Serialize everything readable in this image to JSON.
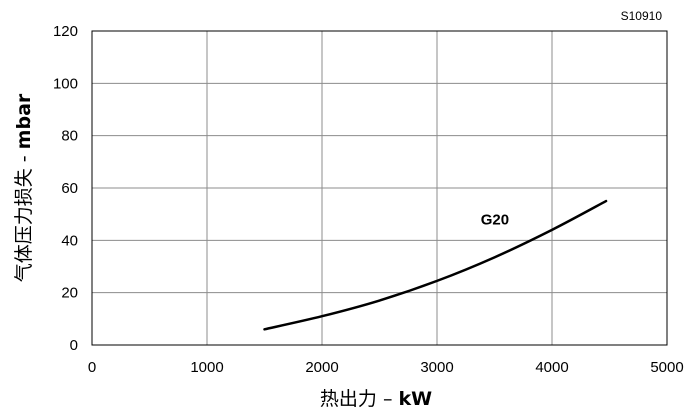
{
  "figure_code": "S10910",
  "chart_data": {
    "type": "line",
    "title": "",
    "xlabel": {
      "text": "热出力 – ",
      "unit": "kW"
    },
    "ylabel": {
      "text": "气体压力损失 - ",
      "unit": "mbar"
    },
    "xlim": [
      0,
      5000
    ],
    "ylim": [
      0,
      120
    ],
    "xticks": [
      "0",
      "1000",
      "2000",
      "3000",
      "4000",
      "5000"
    ],
    "yticks": [
      "0",
      "20",
      "40",
      "60",
      "80",
      "100",
      "120"
    ],
    "grid": true,
    "legend": "none",
    "series": [
      {
        "name": "G20",
        "color": "#000000",
        "x": [
          1500,
          2000,
          2500,
          3000,
          3500,
          4000,
          4470
        ],
        "y": [
          6,
          11,
          17,
          24.5,
          33.5,
          44,
          55
        ]
      }
    ]
  }
}
